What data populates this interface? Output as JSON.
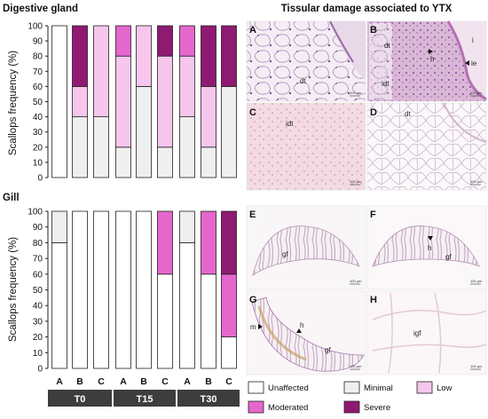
{
  "chart_data": [
    {
      "type": "bar",
      "stacked": true,
      "title": "Digestive gland",
      "ylabel": "Scallops frequency (%)",
      "ylim": [
        0,
        100
      ],
      "yticks": [
        0,
        10,
        20,
        30,
        40,
        50,
        60,
        70,
        80,
        90,
        100
      ],
      "categories": [
        "A",
        "B",
        "C",
        "A",
        "B",
        "C",
        "A",
        "B",
        "C"
      ],
      "series": [
        {
          "name": "Unaffected",
          "color": "#ffffff",
          "values": [
            100,
            0,
            0,
            0,
            0,
            0,
            0,
            0,
            0
          ]
        },
        {
          "name": "Minimal",
          "color": "#efefef",
          "values": [
            0,
            40,
            40,
            20,
            60,
            20,
            40,
            20,
            60
          ]
        },
        {
          "name": "Low",
          "color": "#f6c6ec",
          "values": [
            0,
            20,
            60,
            60,
            40,
            60,
            40,
            40,
            0
          ]
        },
        {
          "name": "Moderated",
          "color": "#e567cd",
          "values": [
            0,
            0,
            0,
            20,
            0,
            0,
            20,
            0,
            0
          ]
        },
        {
          "name": "Severe",
          "color": "#8f1a72",
          "values": [
            0,
            40,
            0,
            0,
            0,
            20,
            0,
            40,
            40
          ]
        }
      ]
    },
    {
      "type": "bar",
      "stacked": true,
      "title": "Gill",
      "ylabel": "Scallops frequency (%)",
      "ylim": [
        0,
        100
      ],
      "yticks": [
        0,
        10,
        20,
        30,
        40,
        50,
        60,
        70,
        80,
        90,
        100
      ],
      "categories": [
        "A",
        "B",
        "C",
        "A",
        "B",
        "C",
        "A",
        "B",
        "C"
      ],
      "groups": [
        "T0",
        "T15",
        "T30"
      ],
      "series": [
        {
          "name": "Unaffected",
          "color": "#ffffff",
          "values": [
            80,
            100,
            100,
            100,
            100,
            60,
            80,
            60,
            20
          ]
        },
        {
          "name": "Minimal",
          "color": "#efefef",
          "values": [
            20,
            0,
            0,
            0,
            0,
            0,
            20,
            0,
            0
          ]
        },
        {
          "name": "Low",
          "color": "#f6c6ec",
          "values": [
            0,
            0,
            0,
            0,
            0,
            0,
            0,
            0,
            0
          ]
        },
        {
          "name": "Moderated",
          "color": "#e567cd",
          "values": [
            0,
            0,
            0,
            0,
            0,
            40,
            0,
            40,
            40
          ]
        },
        {
          "name": "Severe",
          "color": "#8f1a72",
          "values": [
            0,
            0,
            0,
            0,
            0,
            0,
            0,
            0,
            40
          ]
        }
      ]
    }
  ],
  "micrographs": {
    "title": "Tissular damage associated to YTX",
    "scale_bar": "100 µm",
    "panels": [
      {
        "letter": "A",
        "labels": [
          "dt"
        ]
      },
      {
        "letter": "B",
        "labels": [
          "dt",
          "h",
          "i",
          "ie",
          "idt"
        ]
      },
      {
        "letter": "C",
        "labels": [
          "idt"
        ]
      },
      {
        "letter": "D",
        "labels": [
          "dt"
        ]
      },
      {
        "letter": "E",
        "labels": [
          "gf"
        ]
      },
      {
        "letter": "F",
        "labels": [
          "h",
          "gf"
        ]
      },
      {
        "letter": "G",
        "labels": [
          "m",
          "h",
          "gf"
        ]
      },
      {
        "letter": "H",
        "labels": [
          "igf"
        ]
      }
    ]
  },
  "legend": [
    {
      "label": "Unaffected",
      "color": "#ffffff"
    },
    {
      "label": "Minimal",
      "color": "#efefef"
    },
    {
      "label": "Low",
      "color": "#f6c6ec"
    },
    {
      "label": "Moderated",
      "color": "#e567cd"
    },
    {
      "label": "Severe",
      "color": "#8f1a72"
    }
  ]
}
